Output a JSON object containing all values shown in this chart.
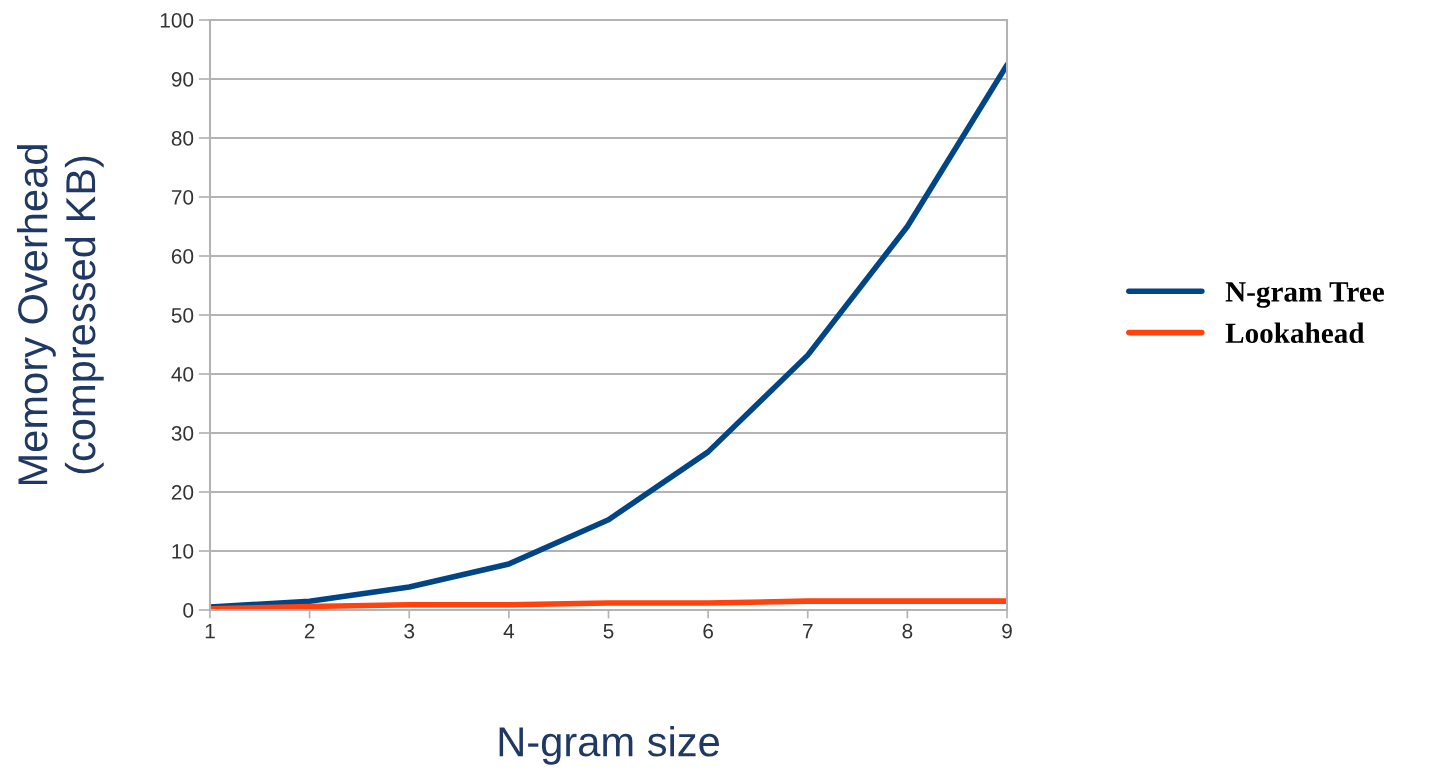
{
  "chart_data": {
    "type": "line",
    "xlabel": "N-gram size",
    "ylabel": "Memory Overhead\n(compressed KB)",
    "x": [
      1,
      2,
      3,
      4,
      5,
      6,
      7,
      8,
      9
    ],
    "series": [
      {
        "name": "N-gram Tree",
        "color": "#004586",
        "values": [
          0.5,
          1.5,
          3.9,
          7.8,
          15.3,
          26.8,
          43.2,
          65,
          92.4
        ]
      },
      {
        "name": "Lookahead",
        "color": "#ff420e",
        "values": [
          0.2,
          0.6,
          0.9,
          0.9,
          1.2,
          1.2,
          1.5,
          1.5,
          1.5
        ]
      }
    ],
    "xlim": [
      1,
      9
    ],
    "xticks": [
      1,
      2,
      3,
      4,
      5,
      6,
      7,
      8,
      9
    ],
    "ylim": [
      0,
      100
    ],
    "yticks": [
      0,
      10,
      20,
      30,
      40,
      50,
      60,
      70,
      80,
      90,
      100
    ],
    "grid": "y",
    "legend": "right",
    "marker": "none",
    "line_style": "solid"
  }
}
